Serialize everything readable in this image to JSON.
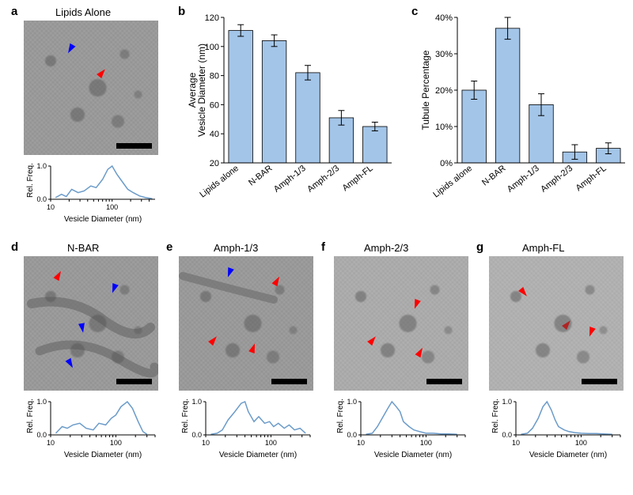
{
  "colors": {
    "bar_fill": "#a3c5e8",
    "bar_stroke": "#000000",
    "line_stroke": "#6b9bc9",
    "arrow_red": "#ff0000",
    "arrow_blue": "#0000ff",
    "background": "#ffffff",
    "em_background": "#9a9a9a"
  },
  "panel_a": {
    "label": "a",
    "title": "Lipids Alone",
    "mini_chart": {
      "xlabel": "Vesicle Diameter (nm)",
      "ylabel": "Rel. Freq.",
      "xscale": "log",
      "xlim": [
        10,
        500
      ],
      "ylim": [
        0,
        1.0
      ],
      "xticks": [
        10,
        100
      ],
      "yticks": [
        0,
        1.0
      ],
      "x": [
        12,
        15,
        18,
        22,
        28,
        35,
        45,
        55,
        70,
        85,
        100,
        120,
        150,
        180,
        220,
        280,
        350,
        450
      ],
      "y": [
        0.05,
        0.15,
        0.08,
        0.3,
        0.2,
        0.25,
        0.4,
        0.35,
        0.6,
        0.9,
        1.0,
        0.75,
        0.5,
        0.3,
        0.2,
        0.1,
        0.05,
        0.02
      ]
    }
  },
  "panel_b": {
    "label": "b",
    "chart": {
      "type": "bar",
      "ylabel": "Average\nVesicle Diameter (nm)",
      "ylim": [
        20,
        120
      ],
      "ytick_step": 20,
      "categories": [
        "Lipids alone",
        "N-BAR",
        "Amph-1/3",
        "Amph-2/3",
        "Amph-FL"
      ],
      "values": [
        111,
        104,
        82,
        51,
        45
      ],
      "errors": [
        4,
        4,
        5,
        5,
        3
      ],
      "bar_color": "#a3c5e8",
      "bar_width": 0.72
    }
  },
  "panel_c": {
    "label": "c",
    "chart": {
      "type": "bar",
      "ylabel": "Tubule Percentage",
      "ylim": [
        0,
        40
      ],
      "ytick_step": 10,
      "yformat": "percent",
      "categories": [
        "Lipids alone",
        "N-BAR",
        "Amph-1/3",
        "Amph-2/3",
        "Amph-FL"
      ],
      "values": [
        20,
        37,
        16,
        3,
        4
      ],
      "errors": [
        2.5,
        3,
        3,
        2,
        1.5
      ],
      "bar_color": "#a3c5e8",
      "bar_width": 0.72
    }
  },
  "bottom_row": {
    "xlabel": "Vesicle Diameter (nm)",
    "ylabel": "Rel. Freq.",
    "xscale": "log",
    "xlim": [
      10,
      400
    ],
    "ylim": [
      0,
      1.0
    ],
    "xticks": [
      10,
      100
    ],
    "yticks": [
      0,
      1.0
    ]
  },
  "panel_d": {
    "label": "d",
    "title": "N-BAR",
    "mini_chart": {
      "x": [
        12,
        15,
        18,
        22,
        28,
        35,
        45,
        55,
        70,
        85,
        100,
        120,
        150,
        180,
        220,
        260,
        300
      ],
      "y": [
        0.05,
        0.25,
        0.2,
        0.3,
        0.35,
        0.2,
        0.15,
        0.35,
        0.3,
        0.5,
        0.6,
        0.85,
        1.0,
        0.8,
        0.4,
        0.1,
        0.02
      ]
    }
  },
  "panel_e": {
    "label": "e",
    "title": "Amph-1/3",
    "mini_chart": {
      "x": [
        12,
        15,
        18,
        22,
        28,
        35,
        40,
        45,
        55,
        65,
        80,
        95,
        110,
        130,
        160,
        190,
        230,
        280,
        340
      ],
      "y": [
        0.02,
        0.05,
        0.15,
        0.45,
        0.7,
        0.95,
        1.0,
        0.7,
        0.4,
        0.55,
        0.35,
        0.4,
        0.25,
        0.35,
        0.2,
        0.3,
        0.15,
        0.2,
        0.05
      ]
    }
  },
  "panel_f": {
    "label": "f",
    "title": "Amph-2/3",
    "mini_chart": {
      "x": [
        12,
        15,
        18,
        22,
        26,
        30,
        35,
        40,
        45,
        55,
        65,
        80,
        100,
        130,
        170,
        220,
        300
      ],
      "y": [
        0.02,
        0.05,
        0.25,
        0.55,
        0.8,
        1.0,
        0.85,
        0.7,
        0.4,
        0.25,
        0.15,
        0.1,
        0.05,
        0.05,
        0.03,
        0.03,
        0.02
      ]
    }
  },
  "panel_g": {
    "label": "g",
    "title": "Amph-FL",
    "mini_chart": {
      "x": [
        12,
        15,
        18,
        22,
        26,
        30,
        35,
        40,
        45,
        55,
        65,
        80,
        100,
        130,
        170,
        220,
        300
      ],
      "y": [
        0.02,
        0.05,
        0.2,
        0.5,
        0.85,
        1.0,
        0.75,
        0.45,
        0.25,
        0.15,
        0.1,
        0.07,
        0.05,
        0.04,
        0.04,
        0.03,
        0.02
      ]
    }
  }
}
